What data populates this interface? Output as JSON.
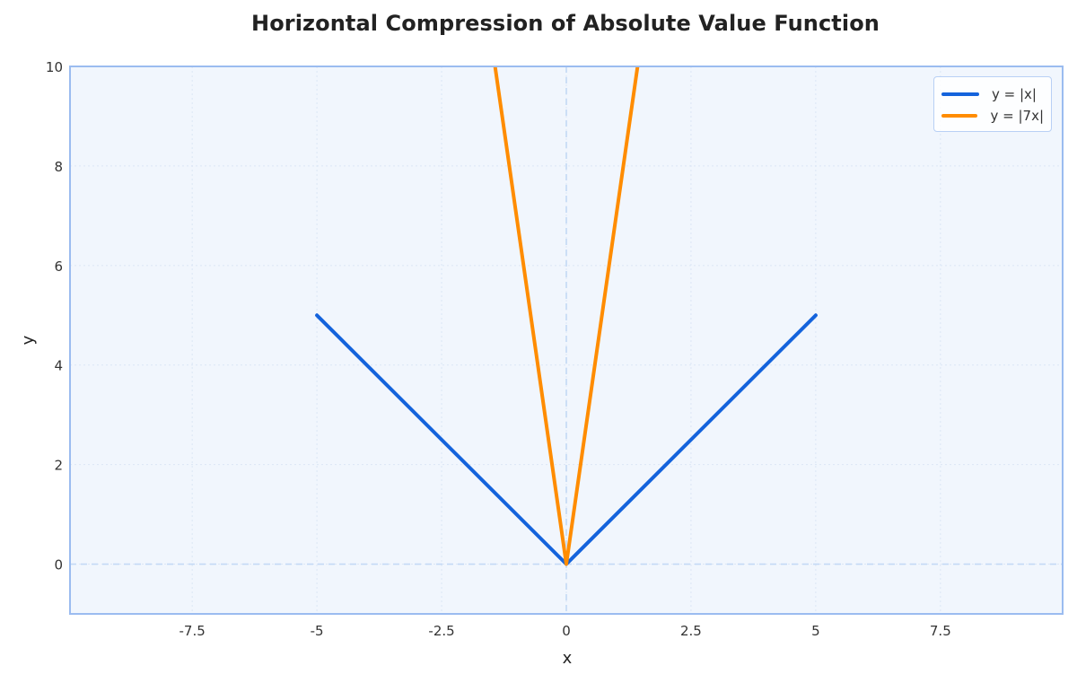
{
  "chart_data": {
    "type": "line",
    "title": "Horizontal Compression of Absolute Value Function",
    "xlabel": "x",
    "ylabel": "y",
    "xlim": [
      -9.95,
      9.95
    ],
    "ylim": [
      -1,
      10
    ],
    "x_ticks": [
      -7.5,
      -5,
      -2.5,
      0,
      2.5,
      5,
      7.5
    ],
    "x_tick_labels": [
      "-7.5",
      "-5",
      "-2.5",
      "0",
      "2.5",
      "5",
      "7.5"
    ],
    "y_ticks": [
      0,
      2,
      4,
      6,
      8,
      10
    ],
    "y_tick_labels": [
      "0",
      "2",
      "4",
      "6",
      "8",
      "10"
    ],
    "grid": true,
    "reference_lines": {
      "x_zero": true,
      "y_zero": true,
      "style": "dashed"
    },
    "legend_position": "upper right",
    "series": [
      {
        "name": "y = |x|",
        "color": "#1463dc",
        "x": [
          -5,
          0,
          5
        ],
        "y": [
          5,
          0,
          5
        ]
      },
      {
        "name": "y = |7x|",
        "color": "#ff8c00",
        "x": [
          -1.4286,
          0,
          1.4286
        ],
        "y": [
          10,
          0,
          10
        ],
        "note": "clipped at y=10"
      }
    ]
  },
  "colors": {
    "plot_background": "#f1f6fd",
    "frame": "#9bbcf0",
    "grid": "#dbe6f5",
    "zero_line": "#c3d9f5"
  }
}
